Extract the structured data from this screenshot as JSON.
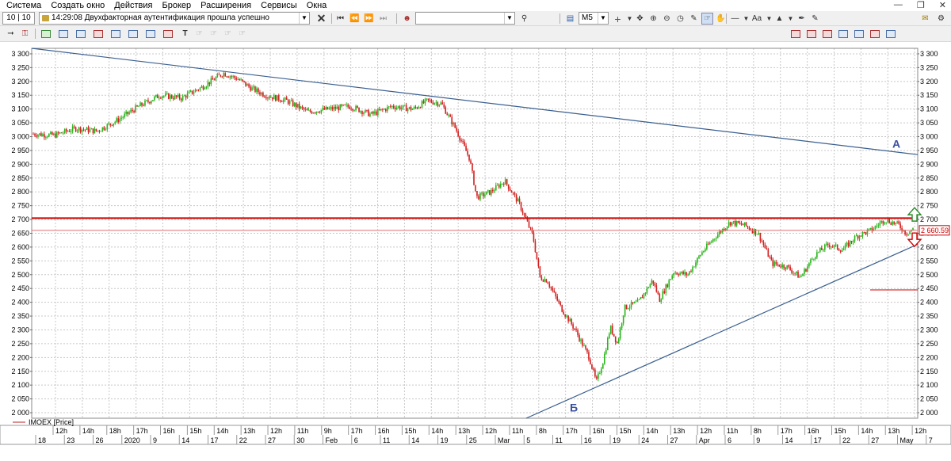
{
  "menu": [
    "Система",
    "Создать окно",
    "Действия",
    "Брокер",
    "Расширения",
    "Сервисы",
    "Окна"
  ],
  "toolbar": {
    "counter": "10 | 10",
    "message": "14:29:08  Двухфакторная аутентификация прошла успешно",
    "instrument_value": "",
    "timeframe": "M5",
    "font_label": "Aa"
  },
  "icons": [
    "minimize-icon",
    "maximize-icon",
    "close-icon",
    "stop-icon",
    "rewind-first-icon",
    "rewind-icon",
    "forward-icon",
    "forward-last-icon",
    "user-icon",
    "search-icon",
    "chart-icon",
    "crosshair-icon",
    "zoom-in-icon",
    "zoom-out-icon",
    "pencil-icon",
    "hand-icon",
    "line-icon",
    "text-icon",
    "fill-icon",
    "pin-icon"
  ],
  "chart_data": {
    "type": "line",
    "instrument": "IMOEX [Price]",
    "y_ticks": [
      3300,
      3250,
      3200,
      3150,
      3100,
      3050,
      3000,
      2950,
      2900,
      2850,
      2800,
      2750,
      2700,
      2650,
      2600,
      2550,
      2500,
      2450,
      2400,
      2350,
      2300,
      2250,
      2200,
      2150,
      2100,
      2050,
      2000
    ],
    "ylim": [
      1980,
      3320
    ],
    "current_price_label": "2 660.59",
    "annotations": [
      {
        "text": "А"
      },
      {
        "text": "Б"
      }
    ],
    "hourly_ticks": [
      "12h",
      "14h",
      "18h",
      "17h",
      "16h",
      "15h",
      "14h",
      "13h",
      "12h",
      "11h",
      "9h",
      "17h",
      "16h",
      "15h",
      "14h",
      "13h",
      "12h",
      "11h",
      "8h",
      "17h",
      "16h",
      "15h",
      "14h",
      "13h",
      "12h",
      "11h",
      "8h",
      "17h",
      "16h",
      "15h",
      "14h",
      "13h",
      "12h"
    ],
    "day_ticks": [
      "18",
      "23",
      "26",
      "2020",
      "9",
      "14",
      "17",
      "22",
      "27",
      "30",
      "Feb",
      "6",
      "11",
      "14",
      "19",
      "25",
      "Mar",
      "5",
      "11",
      "16",
      "19",
      "24",
      "27",
      "Apr",
      "6",
      "9",
      "14",
      "17",
      "22",
      "27",
      "May",
      "7"
    ],
    "horizontal_level": 2705,
    "series_anchor_points": [
      [
        0,
        3010
      ],
      [
        3,
        3005
      ],
      [
        6,
        3030
      ],
      [
        9,
        3020
      ],
      [
        12,
        3060
      ],
      [
        15,
        3110
      ],
      [
        18,
        3150
      ],
      [
        21,
        3140
      ],
      [
        24,
        3180
      ],
      [
        27,
        3230
      ],
      [
        29,
        3210
      ],
      [
        31,
        3175
      ],
      [
        33,
        3150
      ],
      [
        36,
        3130
      ],
      [
        39,
        3090
      ],
      [
        42,
        3100
      ],
      [
        45,
        3110
      ],
      [
        48,
        3080
      ],
      [
        51,
        3110
      ],
      [
        54,
        3100
      ],
      [
        56,
        3130
      ],
      [
        58,
        3120
      ],
      [
        60,
        3030
      ],
      [
        62,
        2920
      ],
      [
        63,
        2780
      ],
      [
        65,
        2800
      ],
      [
        67,
        2840
      ],
      [
        69,
        2760
      ],
      [
        71,
        2640
      ],
      [
        72,
        2490
      ],
      [
        73,
        2480
      ],
      [
        75,
        2380
      ],
      [
        77,
        2300
      ],
      [
        79,
        2200
      ],
      [
        80,
        2110
      ],
      [
        81,
        2190
      ],
      [
        82,
        2310
      ],
      [
        83,
        2250
      ],
      [
        84,
        2380
      ],
      [
        85,
        2390
      ],
      [
        86,
        2400
      ],
      [
        88,
        2480
      ],
      [
        89,
        2410
      ],
      [
        91,
        2510
      ],
      [
        93,
        2500
      ],
      [
        95,
        2580
      ],
      [
        97,
        2640
      ],
      [
        99,
        2690
      ],
      [
        101,
        2680
      ],
      [
        103,
        2650
      ],
      [
        105,
        2540
      ],
      [
        107,
        2530
      ],
      [
        109,
        2490
      ],
      [
        111,
        2570
      ],
      [
        113,
        2610
      ],
      [
        115,
        2590
      ],
      [
        117,
        2640
      ],
      [
        119,
        2660
      ],
      [
        121,
        2700
      ],
      [
        123,
        2680
      ],
      [
        124,
        2650
      ],
      [
        125,
        2665
      ]
    ]
  }
}
